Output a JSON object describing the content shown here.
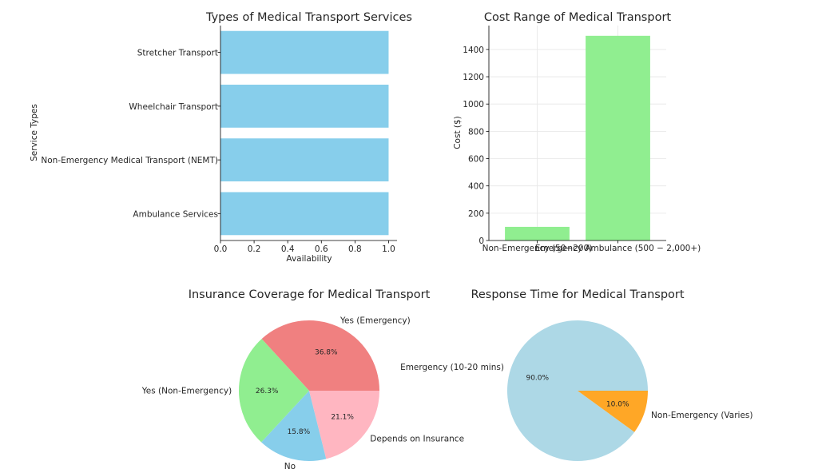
{
  "chart_data": [
    {
      "type": "bar",
      "orientation": "horizontal",
      "title": "Types of Medical Transport Services",
      "xlabel": "Availability",
      "ylabel": "Service Types",
      "categories": [
        "Ambulance Services",
        "Non-Emergency Medical Transport (NEMT)",
        "Wheelchair Transport",
        "Stretcher Transport"
      ],
      "values": [
        1,
        1,
        1,
        1
      ],
      "xlim": [
        0,
        1.05
      ],
      "xticks": [
        "0.0",
        "0.2",
        "0.4",
        "0.6",
        "0.8",
        "1.0"
      ],
      "color": "#87ceeb",
      "grid": false
    },
    {
      "type": "bar",
      "title": "Cost Range of Medical Transport",
      "xlabel": "",
      "ylabel": "Cost ($)",
      "categories": [
        "Non-Emergency ($50-$200)",
        "Emergency Ambulance ($500 - $2,000+)"
      ],
      "tick_labels": [
        "Non-Emergency (50−200)",
        "Emergency Ambulance (500 − 2,000+)"
      ],
      "values": [
        100,
        1500
      ],
      "ylim": [
        0,
        1575
      ],
      "yticks": [
        "0",
        "200",
        "400",
        "600",
        "800",
        "1000",
        "1200",
        "1400"
      ],
      "color": "#90ee90",
      "grid": true
    },
    {
      "type": "pie",
      "title": "Insurance Coverage for Medical Transport",
      "labels": [
        "Yes (Emergency)",
        "Yes (Non-Emergency)",
        "No",
        "Depends on Insurance"
      ],
      "values": [
        36.8,
        26.3,
        15.8,
        21.1
      ],
      "percent_labels": [
        "36.8%",
        "26.3%",
        "15.8%",
        "21.1%"
      ],
      "colors": [
        "#f08080",
        "#90ee90",
        "#87ceeb",
        "#ffb6c1"
      ],
      "startangle": 0
    },
    {
      "type": "pie",
      "title": "Response Time for Medical Transport",
      "labels": [
        "Emergency (10-20 mins)",
        "Non-Emergency (Varies)"
      ],
      "values": [
        90,
        10
      ],
      "percent_labels": [
        "90.0%",
        "10.0%"
      ],
      "colors": [
        "#add8e6",
        "#ffa726"
      ],
      "startangle": 0
    }
  ]
}
